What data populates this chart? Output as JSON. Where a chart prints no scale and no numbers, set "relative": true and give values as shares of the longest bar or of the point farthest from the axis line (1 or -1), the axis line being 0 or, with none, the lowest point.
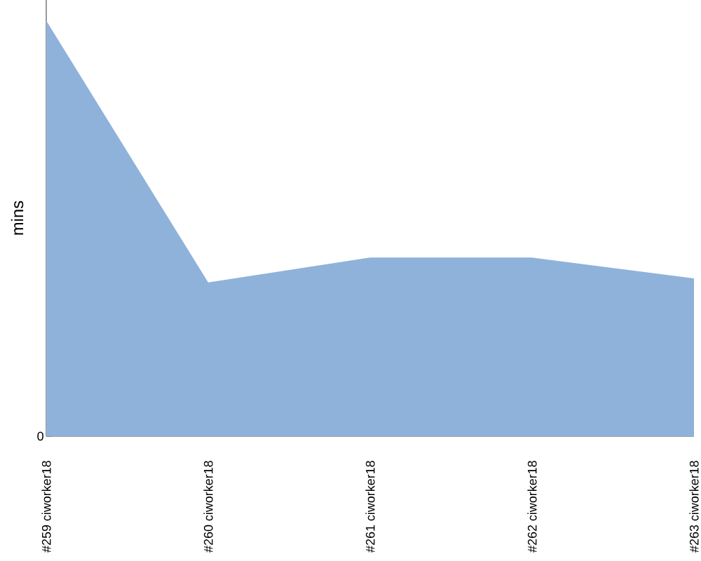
{
  "chart_data": {
    "type": "area",
    "ylabel": "mins",
    "categories": [
      "#259 ciworker18",
      "#260 ciworker18",
      "#261 ciworker18",
      "#262 ciworker18",
      "#263 ciworker18"
    ],
    "values": [
      1,
      0.37,
      0.43,
      0.43,
      0.38
    ],
    "color": "#8fb2da",
    "relative": true,
    "annotations": [
      {
        "text": "0",
        "y": 0
      }
    ]
  }
}
